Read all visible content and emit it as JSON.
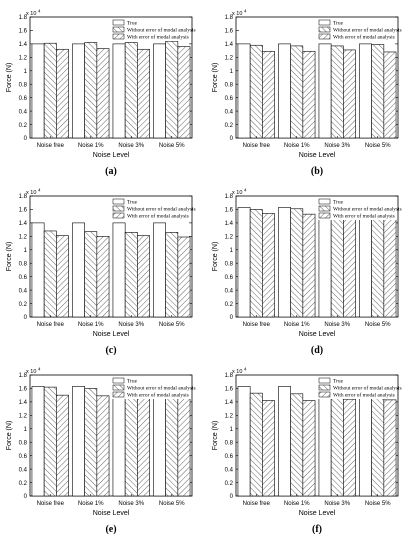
{
  "legend": {
    "true": "True",
    "without": "Without error of modal analysis",
    "with": "With error of modal analysis"
  },
  "axis_text": {
    "xlabel": "Noise Level",
    "ylabel": "Force (N)",
    "multiplier": "x 10",
    "exponent": "4"
  },
  "chart_data": [
    {
      "type": "bar",
      "label": "(a)",
      "categories": [
        "Noise free",
        "Noise 1%",
        "Noise 3%",
        "Noise 5%"
      ],
      "series": [
        {
          "name": "True",
          "values": [
            1.4,
            1.4,
            1.4,
            1.4
          ]
        },
        {
          "name": "Without error of modal analysis",
          "values": [
            1.41,
            1.42,
            1.42,
            1.44
          ]
        },
        {
          "name": "With error of modal analysis",
          "values": [
            1.32,
            1.33,
            1.32,
            1.36
          ]
        }
      ],
      "xlabel": "Noise Level",
      "ylabel": "Force (N)",
      "ylim": [
        0,
        1.8
      ],
      "yticks": [
        "0",
        "0.2",
        "0.4",
        "0.6",
        "0.8",
        "1",
        "1.2",
        "1.4",
        "1.6",
        "1.8"
      ],
      "scale": "x 10^4",
      "legend": "top-right",
      "grid": false
    },
    {
      "type": "bar",
      "label": "(b)",
      "categories": [
        "Noise free",
        "Noise 1%",
        "Noise 3%",
        "Noise 5%"
      ],
      "series": [
        {
          "name": "True",
          "values": [
            1.4,
            1.4,
            1.4,
            1.4
          ]
        },
        {
          "name": "Without error of modal analysis",
          "values": [
            1.38,
            1.37,
            1.37,
            1.39
          ]
        },
        {
          "name": "With error of modal analysis",
          "values": [
            1.29,
            1.29,
            1.31,
            1.28
          ]
        }
      ],
      "xlabel": "Noise Level",
      "ylabel": "Force (N)",
      "ylim": [
        0,
        1.8
      ],
      "yticks": [
        "0",
        "0.2",
        "0.4",
        "0.6",
        "0.8",
        "1",
        "1.2",
        "1.4",
        "1.6",
        "1.8"
      ],
      "scale": "x 10^4",
      "legend": "top-right",
      "grid": false
    },
    {
      "type": "bar",
      "label": "(c)",
      "categories": [
        "Noise free",
        "Noise 1%",
        "Noise 3%",
        "Noise 5%"
      ],
      "series": [
        {
          "name": "True",
          "values": [
            1.4,
            1.4,
            1.4,
            1.4
          ]
        },
        {
          "name": "Without error of modal analysis",
          "values": [
            1.28,
            1.27,
            1.26,
            1.26
          ]
        },
        {
          "name": "With error of modal analysis",
          "values": [
            1.21,
            1.2,
            1.21,
            1.19
          ]
        }
      ],
      "xlabel": "Noise Level",
      "ylabel": "Force (N)",
      "ylim": [
        0,
        1.8
      ],
      "yticks": [
        "0",
        "0.2",
        "0.4",
        "0.6",
        "0.8",
        "1",
        "1.2",
        "1.4",
        "1.6",
        "1.8"
      ],
      "scale": "x 10^4",
      "legend": "top-right",
      "grid": false
    },
    {
      "type": "bar",
      "label": "(d)",
      "categories": [
        "Noise free",
        "Noise 1%",
        "Noise 3%",
        "Noise 5%"
      ],
      "series": [
        {
          "name": "True",
          "values": [
            1.63,
            1.63,
            1.63,
            1.63
          ]
        },
        {
          "name": "Without error of modal analysis",
          "values": [
            1.6,
            1.61,
            1.61,
            1.61
          ]
        },
        {
          "name": "With error of modal analysis",
          "values": [
            1.54,
            1.53,
            1.57,
            1.53
          ]
        }
      ],
      "xlabel": "Noise Level",
      "ylabel": "Force (N)",
      "ylim": [
        0,
        1.8
      ],
      "yticks": [
        "0",
        "0.2",
        "0.4",
        "0.6",
        "0.8",
        "1",
        "1.2",
        "1.4",
        "1.6",
        "1.8"
      ],
      "scale": "x 10^4",
      "legend": "top-right",
      "grid": false
    },
    {
      "type": "bar",
      "label": "(e)",
      "categories": [
        "Noise free",
        "Noise 1%",
        "Noise 3%",
        "Noise 5%"
      ],
      "series": [
        {
          "name": "True",
          "values": [
            1.63,
            1.63,
            1.63,
            1.63
          ]
        },
        {
          "name": "Without error of modal analysis",
          "values": [
            1.62,
            1.6,
            1.61,
            1.61
          ]
        },
        {
          "name": "With error of modal analysis",
          "values": [
            1.5,
            1.49,
            1.5,
            1.49
          ]
        }
      ],
      "xlabel": "Noise Level",
      "ylabel": "Force (N)",
      "ylim": [
        0,
        1.8
      ],
      "yticks": [
        "0",
        "0.2",
        "0.4",
        "0.6",
        "0.8",
        "1",
        "1.2",
        "1.4",
        "1.6",
        "1.8"
      ],
      "scale": "x 10^4",
      "legend": "top-right",
      "grid": false
    },
    {
      "type": "bar",
      "label": "(f)",
      "categories": [
        "Noise free",
        "Noise 1%",
        "Noise 3%",
        "Noise 5%"
      ],
      "series": [
        {
          "name": "True",
          "values": [
            1.63,
            1.63,
            1.63,
            1.63
          ]
        },
        {
          "name": "Without error of modal analysis",
          "values": [
            1.53,
            1.52,
            1.54,
            1.52
          ]
        },
        {
          "name": "With error of modal analysis",
          "values": [
            1.42,
            1.42,
            1.44,
            1.43
          ]
        }
      ],
      "xlabel": "Noise Level",
      "ylabel": "Force (N)",
      "ylim": [
        0,
        1.8
      ],
      "yticks": [
        "0",
        "0.2",
        "0.4",
        "0.6",
        "0.8",
        "1",
        "1.2",
        "1.4",
        "1.6",
        "1.8"
      ],
      "scale": "x 10^4",
      "legend": "top-right",
      "grid": false
    }
  ]
}
